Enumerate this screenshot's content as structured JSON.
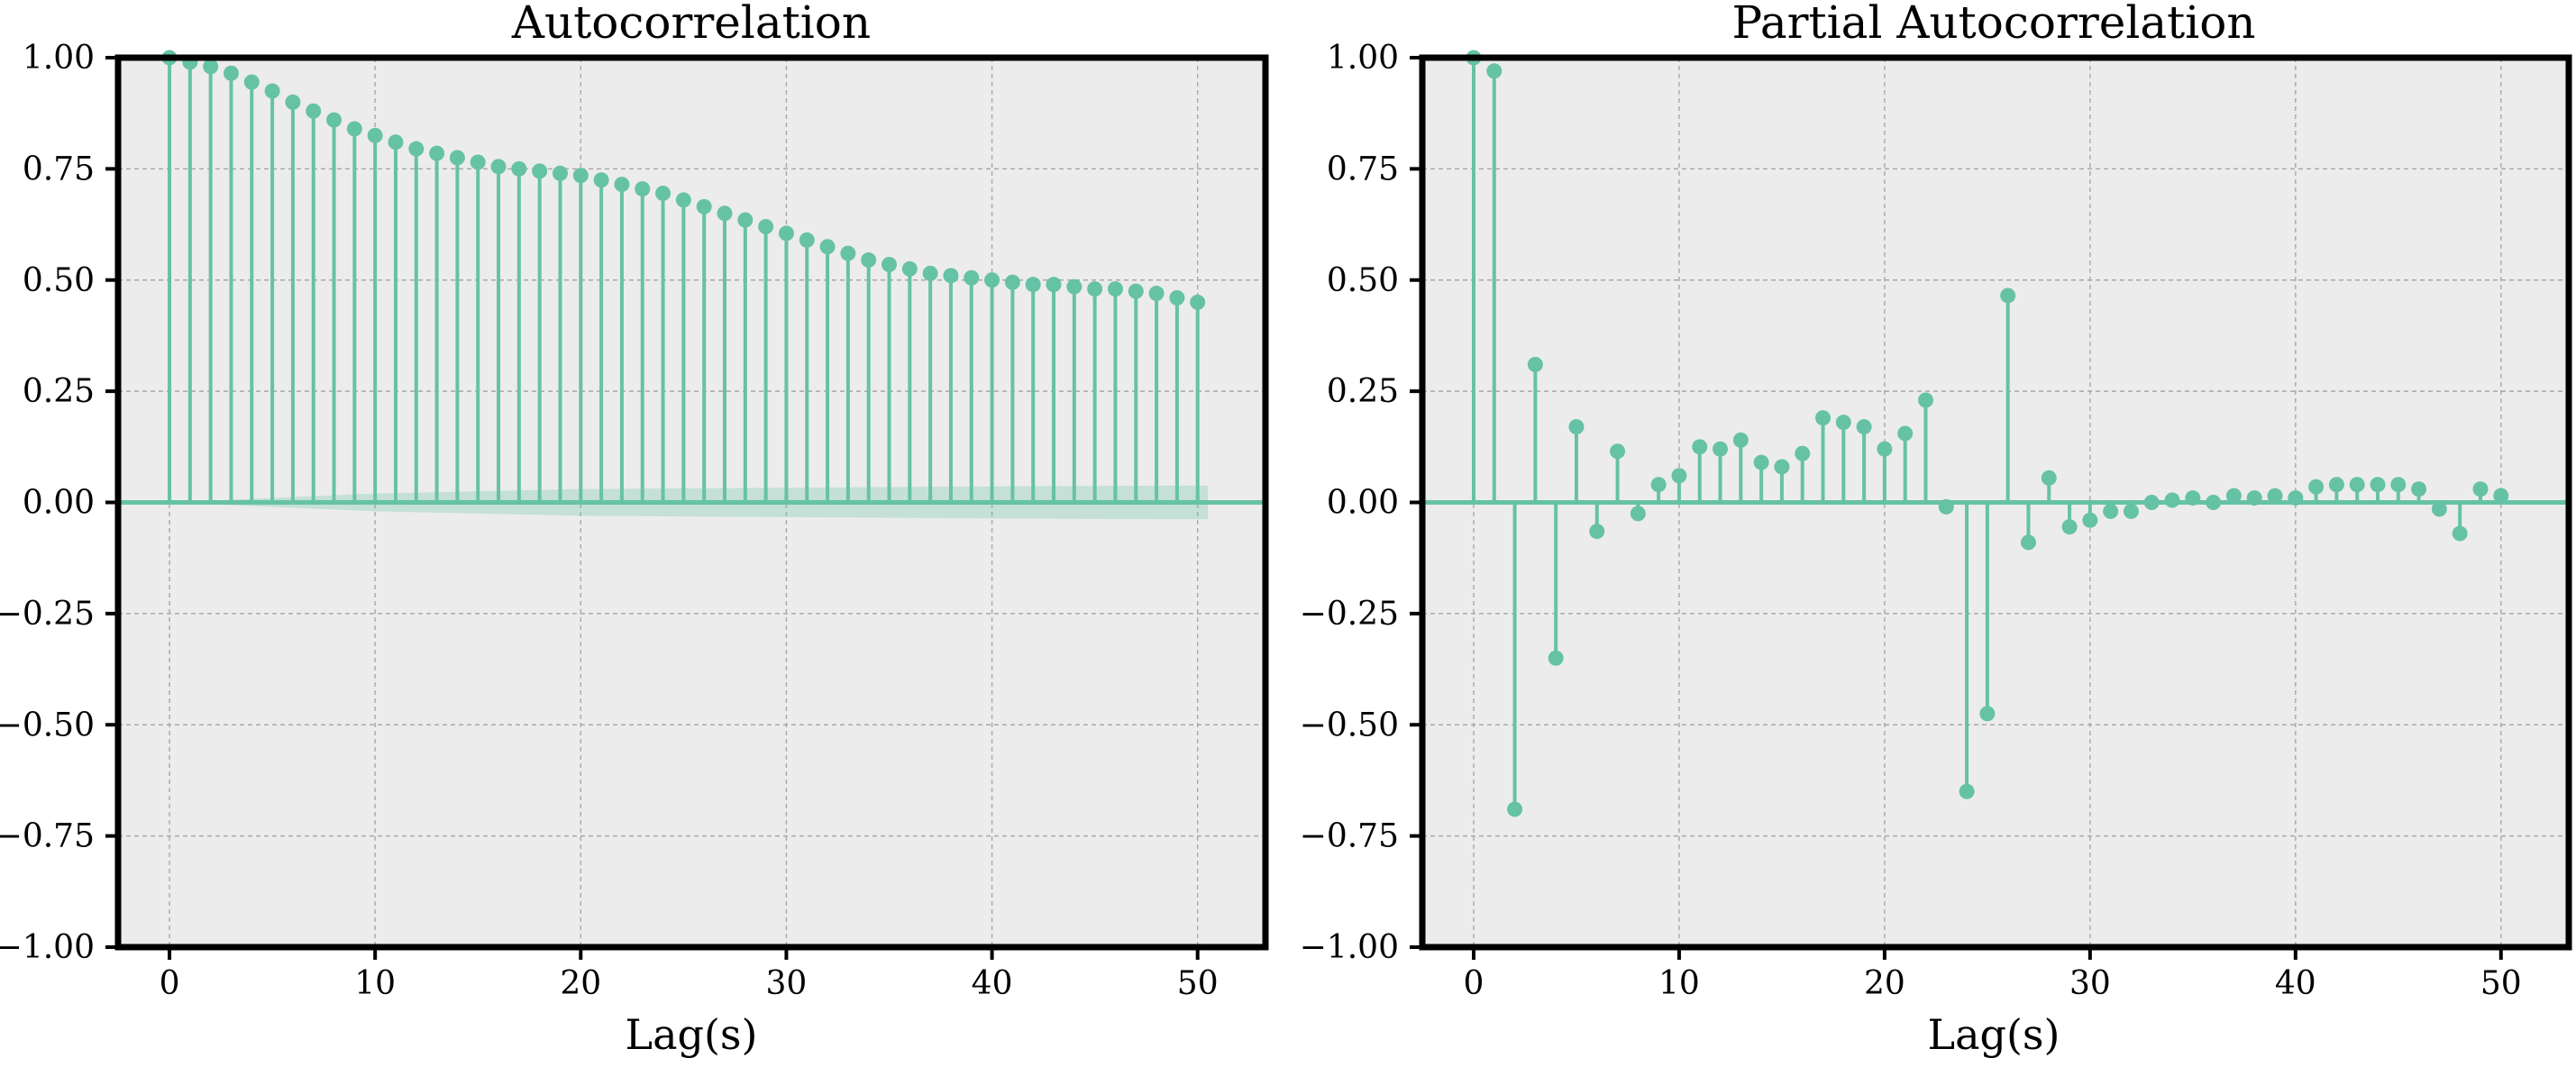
{
  "colors": {
    "stem": "#66c2a5",
    "confidence_band": "#66c2a5",
    "plot_background": "#ececec",
    "grid": "#a8a8a8",
    "frame": "#000000"
  },
  "chart_data": [
    {
      "type": "stem",
      "title": "Autocorrelation",
      "xlabel": "Lag(s)",
      "ylabel": "",
      "xlim": [
        -2.5,
        53.3
      ],
      "ylim": [
        -1.0,
        1.0
      ],
      "xticks": [
        0,
        10,
        20,
        30,
        40,
        50
      ],
      "yticks": [
        -1.0,
        -0.75,
        -0.5,
        -0.25,
        0.0,
        0.25,
        0.5,
        0.75,
        1.0
      ],
      "xtick_labels": [
        "0",
        "10",
        "20",
        "30",
        "40",
        "50"
      ],
      "ytick_labels": [
        "−1.00",
        "−0.75",
        "−0.50",
        "−0.25",
        "0.00",
        "0.25",
        "0.50",
        "0.75",
        "1.00"
      ],
      "grid": true,
      "legend": "none",
      "series": [
        {
          "x": [
            0,
            1,
            2,
            3,
            4,
            5,
            6,
            7,
            8,
            9,
            10,
            11,
            12,
            13,
            14,
            15,
            16,
            17,
            18,
            19,
            20,
            21,
            22,
            23,
            24,
            25,
            26,
            27,
            28,
            29,
            30,
            31,
            32,
            33,
            34,
            35,
            36,
            37,
            38,
            39,
            40,
            41,
            42,
            43,
            44,
            45,
            46,
            47,
            48,
            49,
            50
          ],
          "values": [
            1.0,
            0.99,
            0.98,
            0.965,
            0.945,
            0.925,
            0.9,
            0.88,
            0.86,
            0.84,
            0.825,
            0.81,
            0.795,
            0.785,
            0.775,
            0.765,
            0.755,
            0.75,
            0.745,
            0.74,
            0.735,
            0.725,
            0.715,
            0.705,
            0.695,
            0.68,
            0.665,
            0.65,
            0.635,
            0.62,
            0.605,
            0.59,
            0.575,
            0.56,
            0.545,
            0.535,
            0.525,
            0.515,
            0.51,
            0.505,
            0.5,
            0.495,
            0.49,
            0.49,
            0.485,
            0.48,
            0.48,
            0.475,
            0.47,
            0.46,
            0.45
          ]
        }
      ],
      "confidence_band": {
        "x": [
          0,
          10,
          20,
          30,
          40,
          50.5
        ],
        "upper": [
          0.0,
          0.02,
          0.03,
          0.033,
          0.036,
          0.038
        ],
        "lower": [
          0.0,
          -0.02,
          -0.03,
          -0.033,
          -0.036,
          -0.038
        ]
      }
    },
    {
      "type": "stem",
      "title": "Partial Autocorrelation",
      "xlabel": "Lag(s)",
      "ylabel": "",
      "xlim": [
        -2.5,
        53.3
      ],
      "ylim": [
        -1.0,
        1.0
      ],
      "xticks": [
        0,
        10,
        20,
        30,
        40,
        50
      ],
      "yticks": [
        -1.0,
        -0.75,
        -0.5,
        -0.25,
        0.0,
        0.25,
        0.5,
        0.75,
        1.0
      ],
      "xtick_labels": [
        "0",
        "10",
        "20",
        "30",
        "40",
        "50"
      ],
      "ytick_labels": [
        "−1.00",
        "−0.75",
        "−0.50",
        "−0.25",
        "0.00",
        "0.25",
        "0.50",
        "0.75",
        "1.00"
      ],
      "grid": true,
      "legend": "none",
      "series": [
        {
          "x": [
            0,
            1,
            2,
            3,
            4,
            5,
            6,
            7,
            8,
            9,
            10,
            11,
            12,
            13,
            14,
            15,
            16,
            17,
            18,
            19,
            20,
            21,
            22,
            23,
            24,
            25,
            26,
            27,
            28,
            29,
            30,
            31,
            32,
            33,
            34,
            35,
            36,
            37,
            38,
            39,
            40,
            41,
            42,
            43,
            44,
            45,
            46,
            47,
            48,
            49,
            50
          ],
          "values": [
            1.0,
            0.97,
            -0.69,
            0.31,
            -0.35,
            0.17,
            -0.065,
            0.115,
            -0.025,
            0.04,
            0.06,
            0.125,
            0.12,
            0.14,
            0.09,
            0.08,
            0.11,
            0.19,
            0.18,
            0.17,
            0.12,
            0.155,
            0.23,
            -0.01,
            -0.65,
            -0.475,
            0.465,
            -0.09,
            0.055,
            -0.055,
            -0.04,
            -0.02,
            -0.02,
            0.0,
            0.005,
            0.01,
            0.0,
            0.015,
            0.01,
            0.015,
            0.01,
            0.035,
            0.04,
            0.04,
            0.04,
            0.04,
            0.03,
            -0.015,
            -0.07,
            0.03,
            0.015
          ]
        }
      ]
    }
  ]
}
